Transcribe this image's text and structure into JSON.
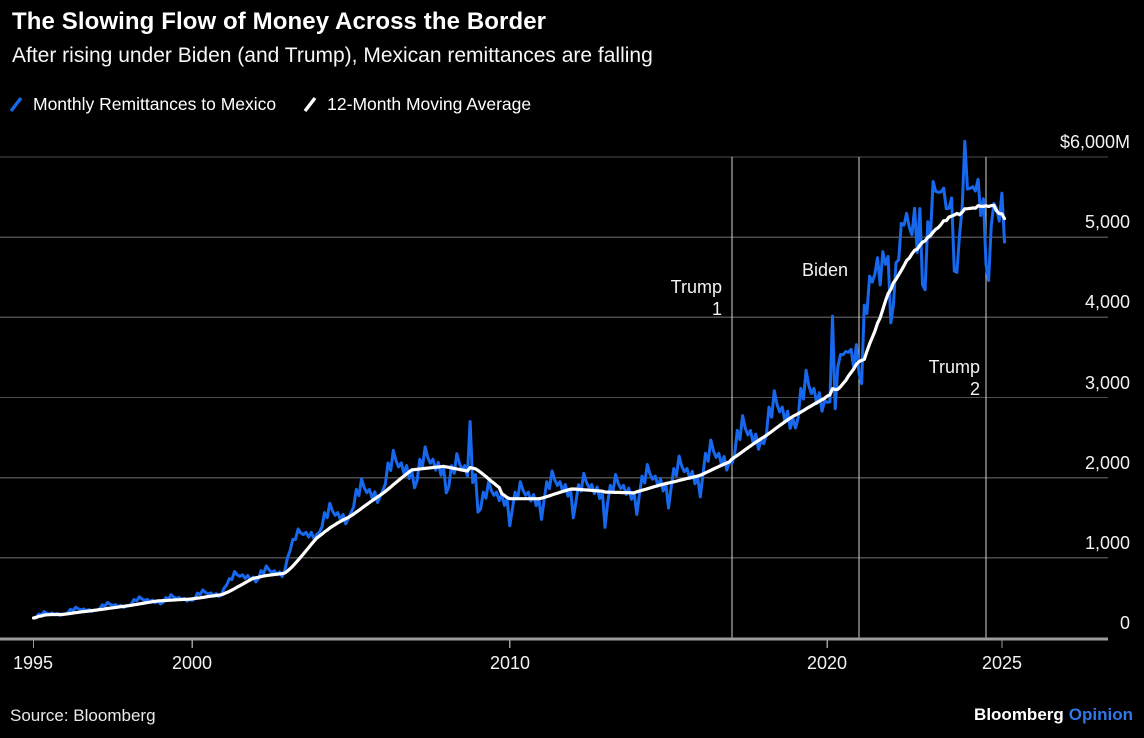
{
  "header": {
    "title": "The Slowing Flow of Money Across the Border",
    "subtitle": "After rising under Biden (and Trump), Mexican remittances are falling"
  },
  "legend": {
    "series1": "Monthly Remittances to Mexico",
    "series2": "12-Month Moving Average"
  },
  "footer": {
    "source": "Source: Bloomberg",
    "brand": "Bloomberg",
    "brand_suffix": "Opinion"
  },
  "colors": {
    "accent_blue": "#1768ec",
    "ma_white": "#ffffff",
    "grid": "#4d4d4d",
    "axis": "#9b9b9b",
    "event_line": "#d4d4d4",
    "text": "#f2f2f2",
    "opinion_blue": "#3077e8"
  },
  "chart_data": {
    "type": "line",
    "title": "The Slowing Flow of Money Across the Border",
    "subtitle": "After rising under Biden (and Trump), Mexican remittances are falling",
    "unit": "USD millions per month",
    "ylim": [
      0,
      6000
    ],
    "x_range": [
      "1995-01",
      "2025-08"
    ],
    "grid": true,
    "legend_position": "top-left",
    "y_ticks": [
      {
        "value": 6000,
        "label": "$6,000M"
      },
      {
        "value": 5000,
        "label": "5,000"
      },
      {
        "value": 4000,
        "label": "4,000"
      },
      {
        "value": 3000,
        "label": "3,000"
      },
      {
        "value": 2000,
        "label": "2,000"
      },
      {
        "value": 1000,
        "label": "1,000"
      },
      {
        "value": 0,
        "label": "0"
      }
    ],
    "x_ticks": [
      {
        "value": 1995,
        "label": "1995"
      },
      {
        "value": 2000,
        "label": "2000"
      },
      {
        "value": 2010,
        "label": "2010"
      },
      {
        "value": 2020,
        "label": "2020"
      },
      {
        "value": 2025,
        "label": "2025"
      }
    ],
    "event_lines": [
      {
        "name": "trump-1",
        "year": 2017.0
      },
      {
        "name": "biden",
        "year": 2021.0
      },
      {
        "name": "trump-2",
        "year": 2025.0
      }
    ],
    "annotations": [
      {
        "name": "trump-1",
        "event": "trump-1",
        "lines": [
          "Trump",
          "1"
        ]
      },
      {
        "name": "biden",
        "event": "biden",
        "lines": [
          "Biden"
        ]
      },
      {
        "name": "trump-2",
        "event": "trump-2",
        "lines": [
          "Trump",
          "2"
        ]
      }
    ],
    "series": [
      {
        "name": "Monthly Remittances to Mexico",
        "color_key": "accent_blue",
        "start": "1995-01",
        "monthly_values_by_year": {
          "1995": [
            250,
            262,
            300,
            288,
            328,
            308,
            300,
            312,
            292,
            304,
            282,
            296
          ],
          "1996": [
            300,
            315,
            358,
            344,
            384,
            362,
            352,
            362,
            340,
            354,
            330,
            346
          ],
          "1997": [
            348,
            364,
            414,
            398,
            444,
            420,
            406,
            416,
            390,
            408,
            380,
            396
          ],
          "1998": [
            404,
            424,
            480,
            462,
            514,
            488,
            470,
            482,
            454,
            474,
            440,
            460
          ],
          "1999": [
            424,
            444,
            504,
            486,
            540,
            510,
            494,
            506,
            476,
            494,
            460,
            480
          ],
          "2000": [
            470,
            494,
            560,
            540,
            600,
            568,
            550,
            562,
            530,
            554,
            516,
            536
          ],
          "2001": [
            620,
            660,
            740,
            728,
            830,
            788,
            768,
            788,
            744,
            780,
            724,
            760
          ],
          "2002": [
            700,
            740,
            840,
            806,
            900,
            850,
            820,
            840,
            790,
            826,
            766,
            850
          ],
          "2003": [
            1000,
            1090,
            1230,
            1228,
            1360,
            1310,
            1290,
            1318,
            1260,
            1318,
            1238,
            1290
          ],
          "2004": [
            1320,
            1380,
            1564,
            1500,
            1680,
            1584,
            1530,
            1564,
            1476,
            1540,
            1424,
            1494
          ],
          "2005": [
            1560,
            1634,
            1854,
            1776,
            1984,
            1874,
            1814,
            1854,
            1744,
            1824,
            1690,
            1764
          ],
          "2006": [
            1840,
            1924,
            2184,
            2090,
            2340,
            2210,
            2134,
            2184,
            2054,
            2150,
            1990,
            2080
          ],
          "2007": [
            1874,
            1964,
            2230,
            2130,
            2384,
            2254,
            2180,
            2230,
            2094,
            2190,
            2030,
            2120
          ],
          "2008": [
            1810,
            1894,
            2150,
            2054,
            2300,
            2174,
            2100,
            2150,
            2020,
            2700,
            1940,
            2040
          ],
          "2009": [
            1570,
            1610,
            1820,
            1744,
            1950,
            1844,
            1780,
            1820,
            1714,
            1790,
            1654,
            1730
          ],
          "2010": [
            1400,
            1610,
            1820,
            1744,
            1950,
            1844,
            1780,
            1820,
            1710,
            1790,
            1650,
            1730
          ],
          "2011": [
            1480,
            1720,
            1950,
            1864,
            2084,
            1974,
            1904,
            1950,
            1830,
            1914,
            1770,
            1850
          ],
          "2012": [
            1500,
            1694,
            1914,
            1834,
            2054,
            1940,
            1874,
            1914,
            1800,
            1884,
            1740,
            1820
          ],
          "2013": [
            1380,
            1680,
            1904,
            1824,
            2040,
            1930,
            1864,
            1904,
            1790,
            1870,
            1730,
            1810
          ],
          "2014": [
            1540,
            1784,
            2020,
            1934,
            2164,
            2044,
            1980,
            2020,
            1900,
            1984,
            1834,
            1920
          ],
          "2015": [
            1620,
            1870,
            2114,
            2024,
            2270,
            2144,
            2074,
            2114,
            1990,
            2080,
            1924,
            2010
          ],
          "2016": [
            1760,
            2034,
            2304,
            2204,
            2470,
            2334,
            2254,
            2304,
            2164,
            2264,
            2094,
            2190
          ],
          "2017": [
            2180,
            2284,
            2590,
            2474,
            2774,
            2620,
            2534,
            2590,
            2430,
            2544,
            2354,
            2460
          ],
          "2018": [
            2424,
            2540,
            2880,
            2754,
            3084,
            2914,
            2820,
            2880,
            2704,
            2830,
            2614,
            2734
          ],
          "2019": [
            2620,
            2744,
            3114,
            2980,
            3340,
            3154,
            3050,
            3114,
            2924,
            3060,
            2830,
            2960
          ],
          "2020": [
            2940,
            2944,
            4016,
            2860,
            3380,
            3536,
            3534,
            3574,
            3564,
            3600,
            3374,
            3660
          ],
          "2021": [
            3300,
            3174,
            4152,
            4048,
            4514,
            4440,
            4540,
            4744,
            4404,
            4820,
            4660,
            4760
          ],
          "2022": [
            3930,
            4154,
            4680,
            4718,
            5172,
            5150,
            5296,
            5122,
            5030,
            5360,
            4810,
            5356
          ],
          "2023": [
            4406,
            4344,
            5194,
            5000,
            5694,
            5572,
            5560,
            5564,
            5612,
            5354,
            5360,
            5490
          ],
          "2024": [
            4576,
            4560,
            5018,
            5370,
            6194,
            5600,
            5610,
            5630,
            5576,
            5720,
            5270,
            5480
          ],
          "2025": [
            4660,
            4460,
            5150,
            5420,
            5360,
            5200,
            5550,
            4940
          ]
        }
      },
      {
        "name": "12-Month Moving Average",
        "color_key": "ma_white",
        "derived": "trailing 12-month moving average of the monthly series"
      }
    ]
  }
}
